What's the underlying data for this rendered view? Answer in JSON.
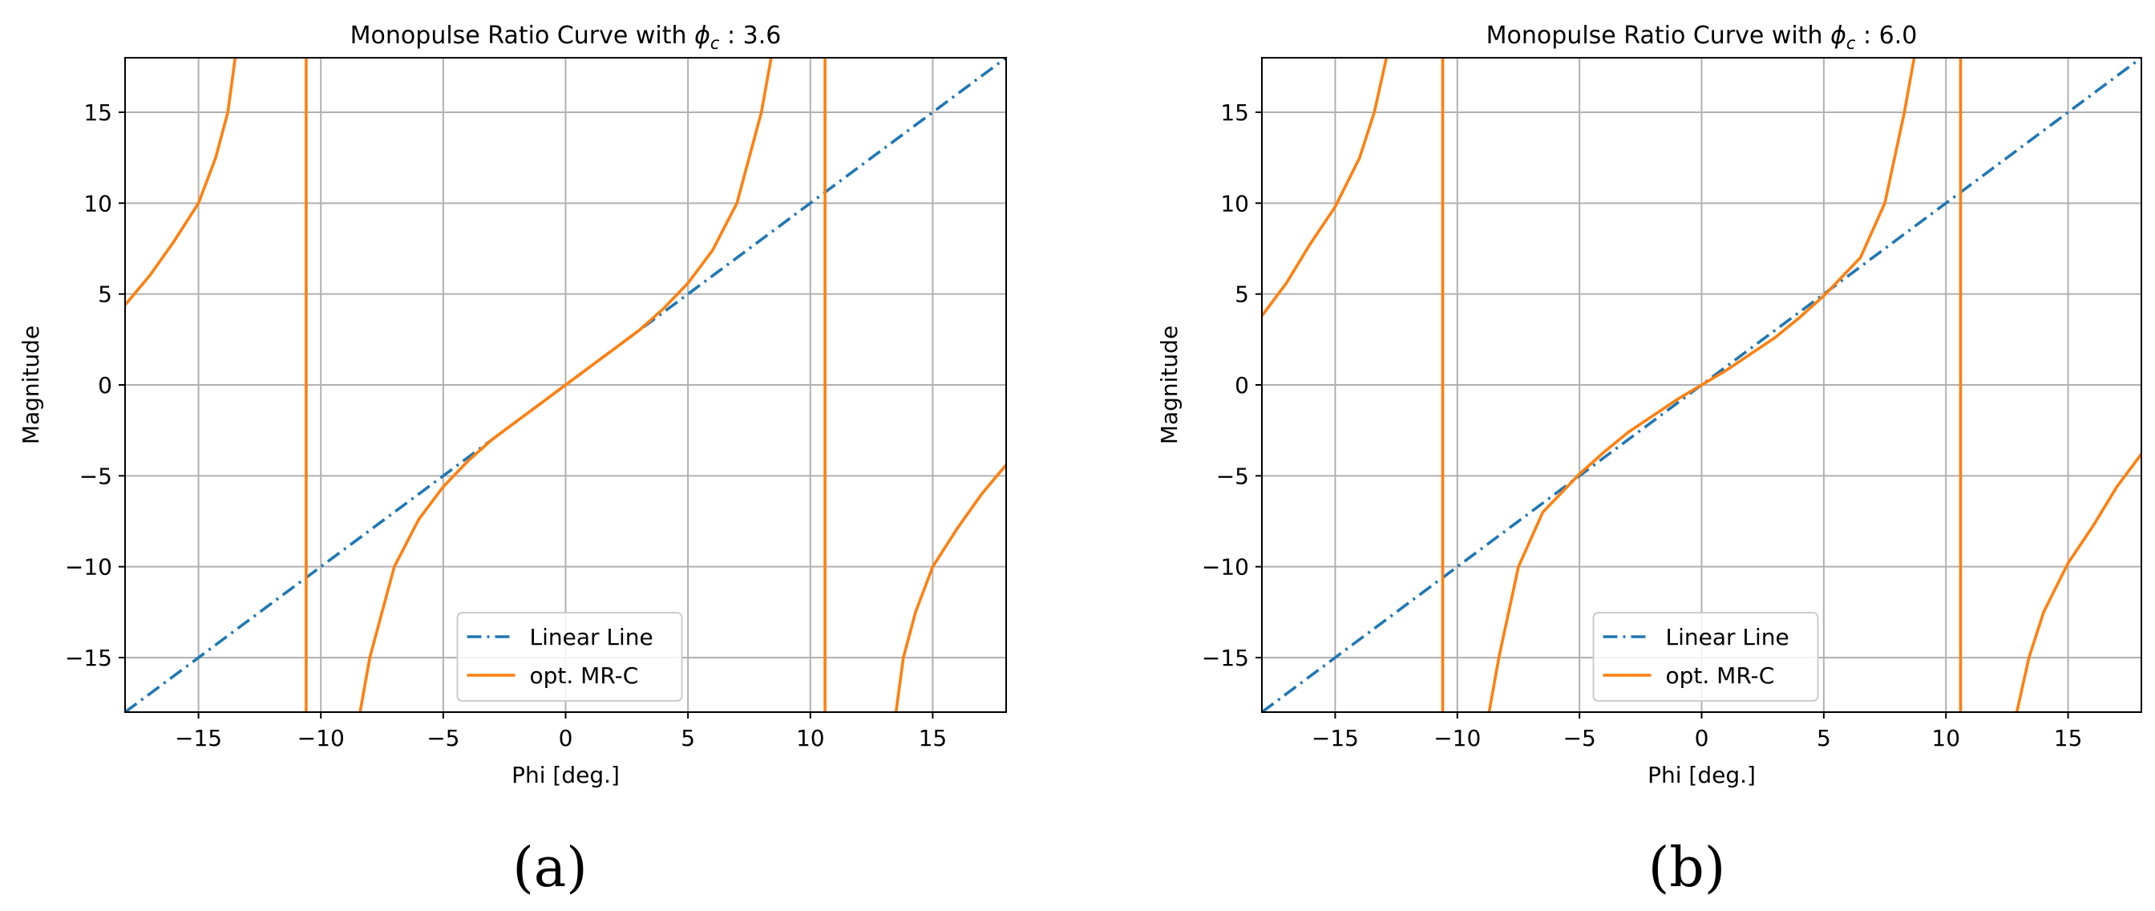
{
  "chart_data": [
    {
      "type": "line",
      "panel_label": "(a)",
      "title": "Monopulse Ratio Curve with ϕc : 3.6",
      "title_prefix": "Monopulse Ratio Curve with ",
      "title_symbol": "ϕ",
      "title_subscript": "c",
      "title_suffix": " : 3.6",
      "xlabel": "Phi [deg.]",
      "ylabel": "Magnitude",
      "xlim": [
        -18,
        18
      ],
      "ylim": [
        -18,
        18
      ],
      "xticks": [
        -15,
        -10,
        -5,
        0,
        5,
        10,
        15
      ],
      "yticks": [
        -15,
        -10,
        -5,
        0,
        5,
        10,
        15
      ],
      "grid": true,
      "legend_position": "lower center",
      "series": [
        {
          "name": "Linear Line",
          "color": "#1f77b4",
          "style": "dashdot",
          "x": [
            -18,
            18
          ],
          "y": [
            -18,
            18
          ]
        },
        {
          "name": "opt. MR-C",
          "color": "#ff7f0e",
          "style": "solid",
          "segments": [
            {
              "x": [
                -18,
                -17,
                -16,
                -15,
                -14.3,
                -13.8,
                -13.5
              ],
              "y": [
                4.4,
                6.0,
                7.9,
                10.0,
                12.5,
                15.0,
                18.0
              ]
            },
            {
              "x": [
                -10.6,
                -10.6
              ],
              "y": [
                -18,
                18
              ]
            },
            {
              "x": [
                -8.4,
                -8.0,
                -7.0,
                -6.0,
                -5.0,
                -4.0,
                -3.0,
                -2.0,
                -1.0,
                0,
                1.0,
                2.0,
                3.0,
                4.0,
                5.0,
                6.0,
                7.0,
                8.0,
                8.4
              ],
              "y": [
                -18.0,
                -15.0,
                -10.0,
                -7.4,
                -5.6,
                -4.2,
                -3.0,
                -2.0,
                -1.0,
                0,
                1.0,
                2.0,
                3.0,
                4.2,
                5.6,
                7.4,
                10.0,
                15.0,
                18.0
              ]
            },
            {
              "x": [
                10.6,
                10.6
              ],
              "y": [
                -18,
                18
              ]
            },
            {
              "x": [
                13.5,
                13.8,
                14.3,
                15.0,
                16.0,
                17.0,
                18.0
              ],
              "y": [
                -18.0,
                -15.0,
                -12.5,
                -10.0,
                -7.9,
                -6.0,
                -4.4
              ]
            }
          ]
        }
      ]
    },
    {
      "type": "line",
      "panel_label": "(b)",
      "title": "Monopulse Ratio Curve with ϕc : 6.0",
      "title_prefix": "Monopulse Ratio Curve with ",
      "title_symbol": "ϕ",
      "title_subscript": "c",
      "title_suffix": " : 6.0",
      "xlabel": "Phi [deg.]",
      "ylabel": "Magnitude",
      "xlim": [
        -18,
        18
      ],
      "ylim": [
        -18,
        18
      ],
      "xticks": [
        -15,
        -10,
        -5,
        0,
        5,
        10,
        15
      ],
      "yticks": [
        -15,
        -10,
        -5,
        0,
        5,
        10,
        15
      ],
      "grid": true,
      "legend_position": "lower center",
      "series": [
        {
          "name": "Linear Line",
          "color": "#1f77b4",
          "style": "dashdot",
          "x": [
            -18,
            18
          ],
          "y": [
            -18,
            18
          ]
        },
        {
          "name": "opt. MR-C",
          "color": "#ff7f0e",
          "style": "solid",
          "segments": [
            {
              "x": [
                -18,
                -17,
                -16,
                -15,
                -14.0,
                -13.4,
                -12.9
              ],
              "y": [
                3.8,
                5.6,
                7.8,
                9.8,
                12.5,
                15.0,
                18.0
              ]
            },
            {
              "x": [
                -10.6,
                -10.6
              ],
              "y": [
                -18,
                18
              ]
            },
            {
              "x": [
                -8.7,
                -8.3,
                -7.5,
                -6.5,
                -5.0,
                -4.0,
                -3.0,
                -2.0,
                -1.0,
                0,
                1.0,
                2.0,
                3.0,
                4.0,
                5.0,
                6.5,
                7.5,
                8.3,
                8.7
              ],
              "y": [
                -18.0,
                -15.0,
                -10.0,
                -7.0,
                -4.9,
                -3.7,
                -2.6,
                -1.7,
                -0.8,
                0,
                0.8,
                1.7,
                2.6,
                3.7,
                4.9,
                7.0,
                10.0,
                15.0,
                18.0
              ]
            },
            {
              "x": [
                10.6,
                10.6
              ],
              "y": [
                -18,
                18
              ]
            },
            {
              "x": [
                12.9,
                13.4,
                14.0,
                15.0,
                16.0,
                17.0,
                18.0
              ],
              "y": [
                -18.0,
                -15.0,
                -12.5,
                -9.8,
                -7.8,
                -5.6,
                -3.8
              ]
            }
          ]
        }
      ]
    }
  ]
}
